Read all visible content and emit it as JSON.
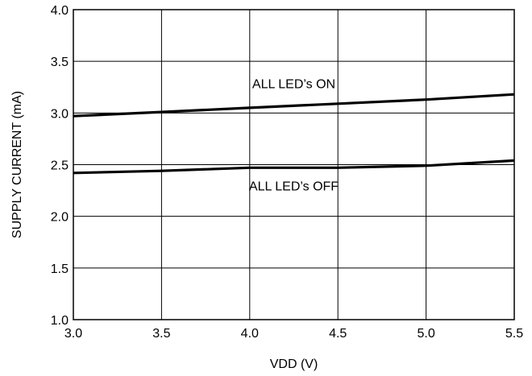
{
  "chart_data": {
    "type": "line",
    "xlabel": "VDD (V)",
    "ylabel": "SUPPLY CURRENT (mA)",
    "xlim": [
      3.0,
      5.5
    ],
    "ylim": [
      1.0,
      4.0
    ],
    "x_ticks": [
      "3.0",
      "3.5",
      "4.0",
      "4.5",
      "5.0",
      "5.5"
    ],
    "y_ticks": [
      "1.0",
      "1.5",
      "2.0",
      "2.5",
      "3.0",
      "3.5",
      "4.0"
    ],
    "grid": true,
    "series": [
      {
        "name": "ALL LED’s ON",
        "x": [
          3.0,
          3.5,
          4.0,
          4.5,
          5.0,
          5.5
        ],
        "y": [
          2.97,
          3.01,
          3.05,
          3.09,
          3.13,
          3.18
        ]
      },
      {
        "name": "ALL LED’s OFF",
        "x": [
          3.0,
          3.5,
          4.0,
          4.5,
          5.0,
          5.5
        ],
        "y": [
          2.42,
          2.44,
          2.47,
          2.47,
          2.49,
          2.54
        ]
      }
    ],
    "colors": {
      "line": "#000000",
      "grid": "#000000"
    }
  }
}
